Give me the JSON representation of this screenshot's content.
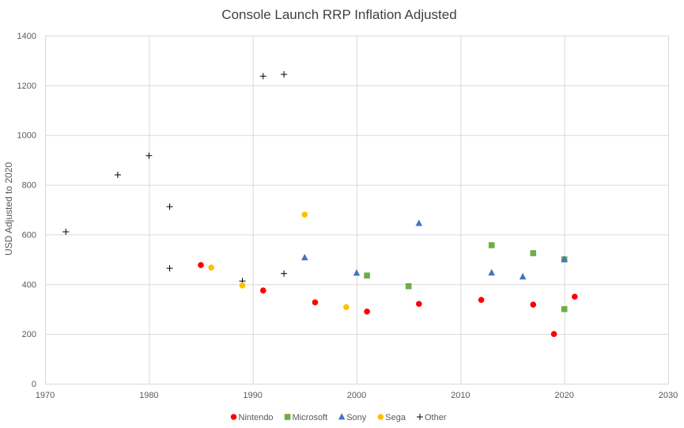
{
  "chart_data": {
    "type": "scatter",
    "title": "Console Launch RRP Inflation Adjusted",
    "xlabel": "",
    "ylabel": "USD Adjusted to 2020",
    "xlim": [
      1970,
      2030
    ],
    "ylim": [
      0,
      1400
    ],
    "xticks": [
      1970,
      1980,
      1990,
      2000,
      2010,
      2020,
      2030
    ],
    "yticks": [
      0,
      200,
      400,
      600,
      800,
      1000,
      1200,
      1400
    ],
    "grid": true,
    "legend_position": "bottom",
    "series": [
      {
        "name": "Nintendo",
        "marker": "circle",
        "color": "#ff0000",
        "points": [
          [
            1985,
            477
          ],
          [
            1991,
            375
          ],
          [
            1996,
            327
          ],
          [
            2001,
            290
          ],
          [
            2006,
            321
          ],
          [
            2012,
            337
          ],
          [
            2017,
            318
          ],
          [
            2019,
            200
          ],
          [
            2021,
            350
          ]
        ]
      },
      {
        "name": "Microsoft",
        "marker": "square",
        "color": "#70ad47",
        "points": [
          [
            2001,
            435
          ],
          [
            2005,
            392
          ],
          [
            2013,
            557
          ],
          [
            2017,
            525
          ],
          [
            2020,
            300
          ],
          [
            2020,
            500
          ]
        ]
      },
      {
        "name": "Sony",
        "marker": "triangle",
        "color": "#4472c4",
        "points": [
          [
            1995,
            507
          ],
          [
            2000,
            445
          ],
          [
            2006,
            645
          ],
          [
            2013,
            446
          ],
          [
            2016,
            430
          ],
          [
            2020,
            500
          ]
        ]
      },
      {
        "name": "Sega",
        "marker": "circle",
        "color": "#ffc000",
        "points": [
          [
            1986,
            467
          ],
          [
            1989,
            395
          ],
          [
            1995,
            680
          ],
          [
            1999,
            308
          ]
        ]
      },
      {
        "name": "Other",
        "marker": "plus",
        "color": "#000000",
        "points": [
          [
            1972,
            611
          ],
          [
            1977,
            840
          ],
          [
            1980,
            917
          ],
          [
            1982,
            712
          ],
          [
            1982,
            464
          ],
          [
            1989,
            413
          ],
          [
            1991,
            1237
          ],
          [
            1993,
            1244
          ],
          [
            1993,
            443
          ]
        ]
      }
    ]
  }
}
